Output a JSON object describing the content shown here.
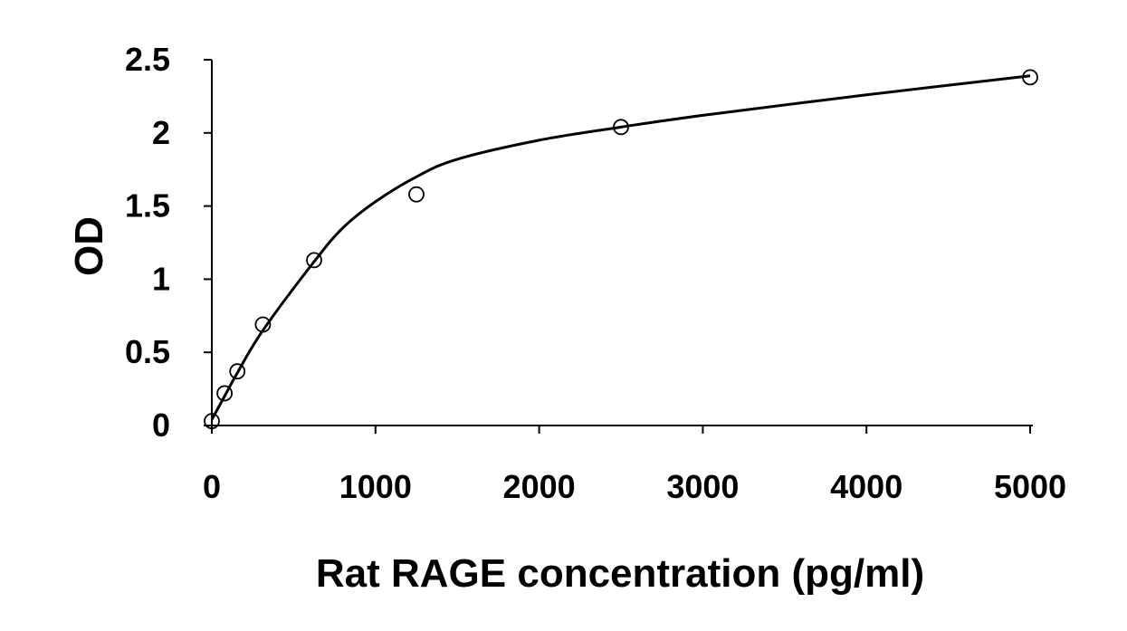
{
  "chart_data": {
    "type": "scatter",
    "title": "",
    "xlabel": "Rat RAGE concentration (pg/ml)",
    "ylabel": "OD",
    "xlim": [
      0,
      5000
    ],
    "ylim": [
      0,
      2.5
    ],
    "x_ticks": [
      0,
      1000,
      2000,
      3000,
      4000,
      5000
    ],
    "x_tick_labels": [
      "0",
      "1000",
      "2000",
      "3000",
      "4000",
      "5000"
    ],
    "y_ticks": [
      0,
      0.5,
      1,
      1.5,
      2,
      2.5
    ],
    "y_tick_labels": [
      "0",
      "0.5",
      "1",
      "1.5",
      "2",
      "2.5"
    ],
    "grid": false,
    "legend": "none",
    "colors": {
      "axis": "#000000",
      "markers": "#000000",
      "curve": "#000000"
    },
    "series": [
      {
        "style": "markers",
        "marker": "open-circle",
        "x": [
          0,
          78,
          156,
          312,
          625,
          1250,
          2500,
          5000
        ],
        "y": [
          0.03,
          0.22,
          0.37,
          0.69,
          1.13,
          1.58,
          2.04,
          2.38
        ]
      },
      {
        "style": "fitted-curve",
        "x": [
          0,
          78,
          156,
          312,
          625,
          800,
          1000,
          1250,
          1500,
          2000,
          2500,
          3000,
          4000,
          5000
        ],
        "y": [
          0.04,
          0.2,
          0.36,
          0.65,
          1.12,
          1.35,
          1.53,
          1.7,
          1.82,
          1.95,
          2.04,
          2.12,
          2.26,
          2.39
        ]
      }
    ]
  }
}
